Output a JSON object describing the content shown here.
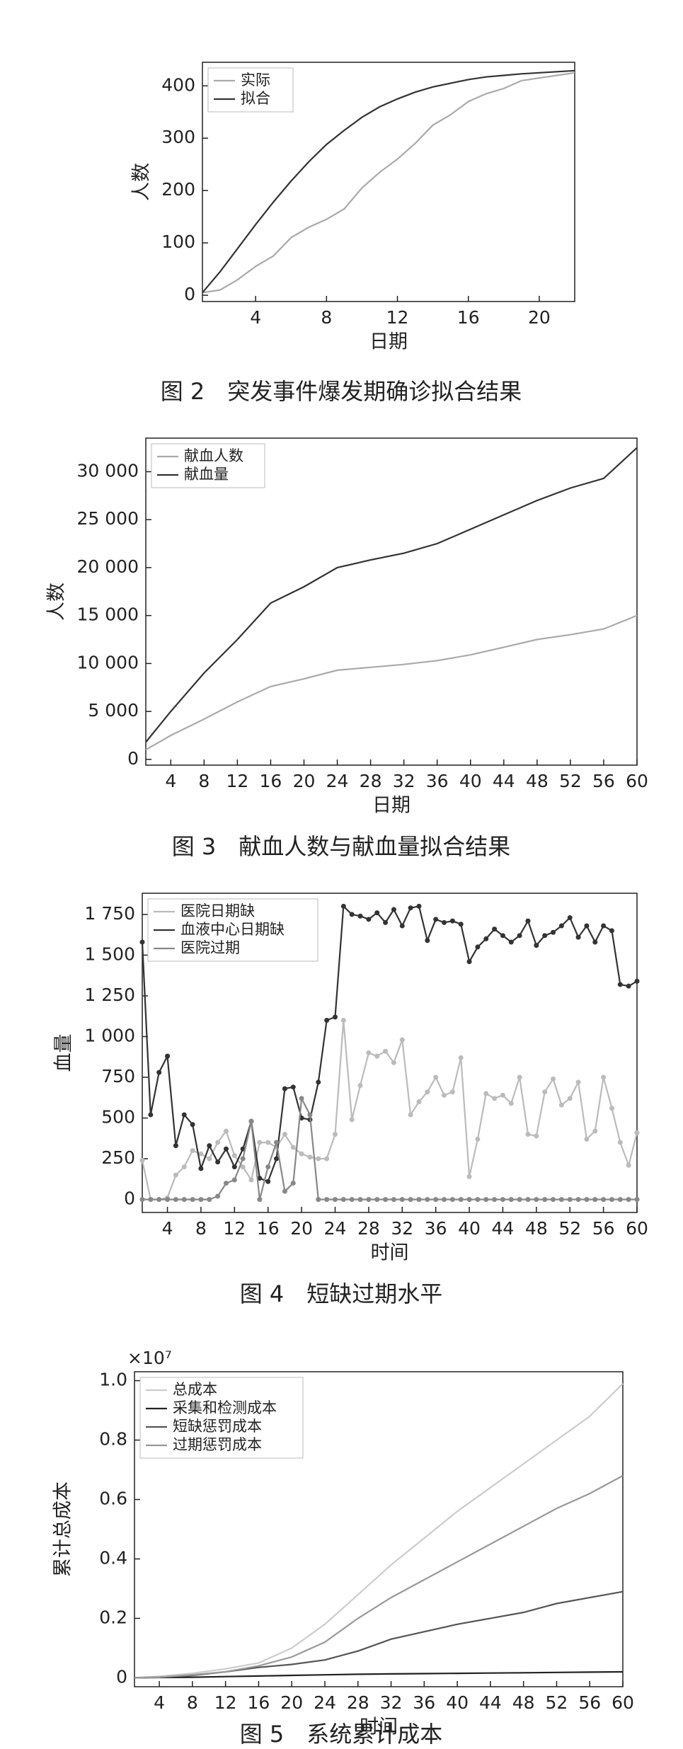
{
  "chart_data": [
    {
      "type": "line",
      "caption": "图 2　突发事件爆发期确诊拟合结果",
      "ylabel": "人数",
      "xlabel": "日期",
      "legend": "upper left",
      "x": [
        1,
        2,
        3,
        4,
        5,
        6,
        7,
        8,
        9,
        10,
        11,
        12,
        13,
        14,
        15,
        16,
        17,
        18,
        19,
        20,
        21,
        22
      ],
      "xlim": [
        1,
        22
      ],
      "xticks": [
        4,
        8,
        12,
        16,
        20
      ],
      "ylim": [
        -12,
        445
      ],
      "yticks": [
        0,
        100,
        200,
        300,
        400
      ],
      "series": [
        {
          "name": "实际",
          "color": "#aaaaaa",
          "values": [
            5,
            10,
            30,
            55,
            75,
            110,
            130,
            145,
            165,
            205,
            235,
            260,
            290,
            325,
            345,
            370,
            385,
            395,
            410,
            415,
            420,
            425
          ]
        },
        {
          "name": "拟合",
          "color": "#333333",
          "values": [
            5,
            45,
            90,
            135,
            178,
            218,
            255,
            288,
            315,
            340,
            360,
            375,
            388,
            398,
            405,
            412,
            417,
            420,
            423,
            425,
            427,
            429
          ]
        }
      ]
    },
    {
      "type": "line",
      "caption": "图 3　献血人数与献血量拟合结果",
      "ylabel": "人数",
      "xlabel": "日期",
      "legend": "upper left",
      "x": [
        1,
        4,
        8,
        12,
        16,
        20,
        24,
        28,
        32,
        36,
        40,
        44,
        48,
        52,
        56,
        60
      ],
      "xlim": [
        1,
        60
      ],
      "xticks": [
        4,
        8,
        12,
        16,
        20,
        24,
        28,
        32,
        36,
        40,
        44,
        48,
        52,
        56,
        60
      ],
      "ylim": [
        -600,
        33500
      ],
      "yticks": [
        0,
        {
          "value": 5000,
          "label": "5 000"
        },
        {
          "value": 10000,
          "label": "10 000"
        },
        {
          "value": 15000,
          "label": "15 000"
        },
        {
          "value": 20000,
          "label": "20 000"
        },
        {
          "value": 25000,
          "label": "25 000"
        },
        {
          "value": 30000,
          "label": "30 000"
        }
      ],
      "series": [
        {
          "name": "献血人数",
          "color": "#aaaaaa",
          "values": [
            1000,
            2500,
            4200,
            6000,
            7600,
            8400,
            9300,
            9600,
            9900,
            10300,
            10900,
            11700,
            12500,
            13000,
            13600,
            15000
          ]
        },
        {
          "name": "献血量",
          "color": "#333333",
          "values": [
            1800,
            5000,
            9000,
            12500,
            16300,
            18000,
            20000,
            20800,
            21500,
            22500,
            24000,
            25500,
            27000,
            28300,
            29300,
            32500
          ]
        }
      ]
    },
    {
      "type": "line",
      "caption": "图 4　短缺过期水平",
      "ylabel": "血量",
      "xlabel": "时间",
      "legend": "upper left",
      "markers": true,
      "x": [
        1,
        2,
        3,
        4,
        5,
        6,
        7,
        8,
        9,
        10,
        11,
        12,
        13,
        14,
        15,
        16,
        17,
        18,
        19,
        20,
        21,
        22,
        23,
        24,
        25,
        26,
        27,
        28,
        29,
        30,
        31,
        32,
        33,
        34,
        35,
        36,
        37,
        38,
        39,
        40,
        41,
        42,
        43,
        44,
        45,
        46,
        47,
        48,
        49,
        50,
        51,
        52,
        53,
        54,
        55,
        56,
        57,
        58,
        59,
        60
      ],
      "xlim": [
        1,
        60
      ],
      "xticks": [
        4,
        8,
        12,
        16,
        20,
        24,
        28,
        32,
        36,
        40,
        44,
        48,
        52,
        56,
        60
      ],
      "ylim": [
        -80,
        1880
      ],
      "yticks": [
        0,
        250,
        500,
        750,
        {
          "value": 1000,
          "label": "1 000"
        },
        {
          "value": 1250,
          "label": "1 250"
        },
        {
          "value": 1500,
          "label": "1 500"
        },
        {
          "value": 1750,
          "label": "1 750"
        }
      ],
      "series": [
        {
          "name": "医院日期缺",
          "color": "#bbbbbb",
          "values": [
            240,
            0,
            0,
            10,
            150,
            200,
            300,
            280,
            250,
            350,
            420,
            270,
            200,
            120,
            350,
            350,
            320,
            400,
            320,
            280,
            260,
            250,
            250,
            400,
            1100,
            490,
            700,
            900,
            880,
            910,
            840,
            980,
            520,
            600,
            660,
            750,
            640,
            660,
            870,
            140,
            370,
            650,
            620,
            640,
            590,
            750,
            400,
            390,
            660,
            740,
            580,
            620,
            720,
            370,
            420,
            750,
            560,
            350,
            210,
            410
          ]
        },
        {
          "name": "血液中心日期缺",
          "color": "#333333",
          "values": [
            1580,
            520,
            780,
            880,
            330,
            520,
            460,
            190,
            330,
            230,
            310,
            200,
            310,
            480,
            130,
            110,
            250,
            680,
            690,
            500,
            490,
            720,
            1100,
            1120,
            1800,
            1750,
            1740,
            1720,
            1760,
            1700,
            1780,
            1680,
            1790,
            1800,
            1590,
            1720,
            1700,
            1710,
            1690,
            1460,
            1550,
            1600,
            1660,
            1620,
            1580,
            1620,
            1710,
            1560,
            1620,
            1640,
            1680,
            1730,
            1610,
            1680,
            1580,
            1680,
            1650,
            1320,
            1310,
            1340
          ]
        },
        {
          "name": "医院过期",
          "color": "#888888",
          "values": [
            0,
            0,
            0,
            0,
            0,
            0,
            0,
            0,
            0,
            20,
            100,
            120,
            250,
            480,
            0,
            200,
            350,
            50,
            100,
            620,
            520,
            0,
            0,
            0,
            0,
            0,
            0,
            0,
            0,
            0,
            0,
            0,
            0,
            0,
            0,
            0,
            0,
            0,
            0,
            0,
            0,
            0,
            0,
            0,
            0,
            0,
            0,
            0,
            0,
            0,
            0,
            0,
            0,
            0,
            0,
            0,
            0,
            0,
            0,
            0
          ]
        }
      ]
    },
    {
      "type": "line",
      "caption": "图 5　系统累计成本",
      "ylabel": "累计总成本",
      "xlabel": "时间",
      "multiplier": "×10⁷",
      "legend": "upper left",
      "x": [
        1,
        4,
        8,
        12,
        16,
        20,
        24,
        28,
        32,
        36,
        40,
        44,
        48,
        52,
        56,
        60
      ],
      "xlim": [
        1,
        60
      ],
      "xticks": [
        4,
        8,
        12,
        16,
        20,
        24,
        28,
        32,
        36,
        40,
        44,
        48,
        52,
        56,
        60
      ],
      "ylim": [
        -0.03,
        1.03
      ],
      "yticks": [
        0,
        0.2,
        0.4,
        0.6,
        0.8,
        {
          "value": 1,
          "label": "1.0"
        }
      ],
      "series": [
        {
          "name": "总成本",
          "color": "#cccccc",
          "values": [
            0,
            0.005,
            0.015,
            0.03,
            0.05,
            0.1,
            0.18,
            0.28,
            0.38,
            0.47,
            0.56,
            0.64,
            0.72,
            0.8,
            0.88,
            0.99
          ]
        },
        {
          "name": "采集和检测成本",
          "color": "#222222",
          "values": [
            0,
            0.001,
            0.002,
            0.004,
            0.006,
            0.008,
            0.01,
            0.012,
            0.013,
            0.014,
            0.015,
            0.016,
            0.017,
            0.018,
            0.019,
            0.02
          ]
        },
        {
          "name": "短缺惩罚成本",
          "color": "#555555",
          "values": [
            0,
            0.002,
            0.008,
            0.02,
            0.035,
            0.045,
            0.06,
            0.09,
            0.13,
            0.155,
            0.18,
            0.2,
            0.22,
            0.25,
            0.27,
            0.29
          ]
        },
        {
          "name": "过期惩罚成本",
          "color": "#999999",
          "values": [
            0,
            0.002,
            0.01,
            0.02,
            0.04,
            0.07,
            0.12,
            0.2,
            0.27,
            0.33,
            0.39,
            0.45,
            0.51,
            0.57,
            0.62,
            0.68
          ]
        }
      ]
    }
  ]
}
